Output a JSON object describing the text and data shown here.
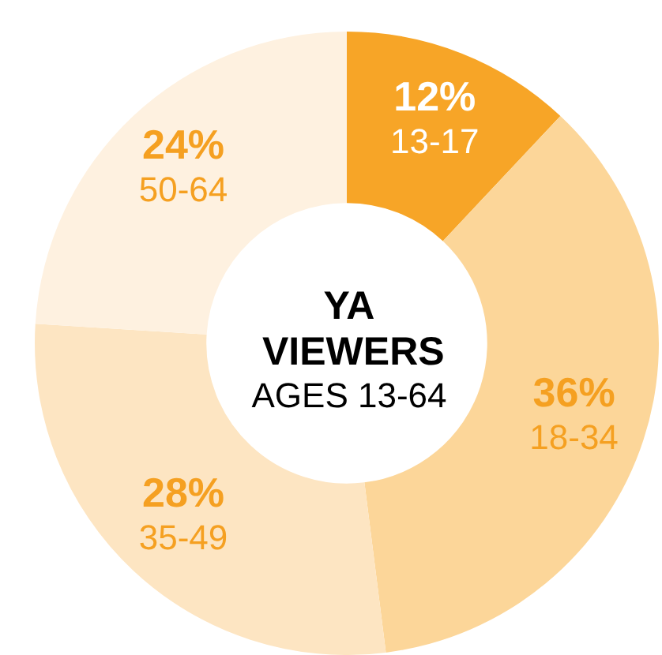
{
  "chart_data": {
    "type": "donut",
    "title": "YA VIEWERS",
    "subtitle": "AGES 13-64",
    "categories": [
      "13-17",
      "18-34",
      "35-49",
      "50-64"
    ],
    "values": [
      12,
      36,
      28,
      24
    ],
    "colors": [
      "#f7a527",
      "#fcd699",
      "#fde5c2",
      "#fef1e0"
    ],
    "value_labels": [
      "12%",
      "36%",
      "28%",
      "24%"
    ],
    "legend": false
  }
}
